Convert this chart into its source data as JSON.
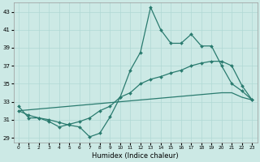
{
  "xlabel": "Humidex (Indice chaleur)",
  "x": [
    0,
    1,
    2,
    3,
    4,
    5,
    6,
    7,
    8,
    9,
    10,
    11,
    12,
    13,
    14,
    15,
    16,
    17,
    18,
    19,
    20,
    21,
    22,
    23
  ],
  "line1": [
    32.5,
    31.2,
    31.2,
    31.0,
    30.7,
    30.4,
    30.2,
    29.1,
    29.5,
    31.3,
    33.5,
    36.5,
    38.5,
    43.5,
    41.0,
    39.5,
    39.5,
    40.5,
    39.2,
    39.2,
    37.0,
    35.0,
    34.2,
    33.2
  ],
  "line2": [
    32.0,
    31.5,
    31.2,
    30.8,
    30.2,
    30.5,
    30.8,
    31.2,
    32.0,
    32.5,
    33.5,
    34.0,
    35.0,
    35.5,
    35.8,
    36.2,
    36.5,
    37.0,
    37.3,
    37.5,
    37.5,
    37.0,
    34.8,
    33.2
  ],
  "line3": [
    32.0,
    32.1,
    32.2,
    32.3,
    32.4,
    32.5,
    32.6,
    32.7,
    32.8,
    32.9,
    33.0,
    33.1,
    33.2,
    33.3,
    33.4,
    33.5,
    33.6,
    33.7,
    33.8,
    33.9,
    34.0,
    34.0,
    33.5,
    33.2
  ],
  "color": "#2a7b6f",
  "bg_color": "#cce9e5",
  "grid_color": "#b0d8d4",
  "ylim": [
    28.5,
    44
  ],
  "yticks": [
    29,
    31,
    33,
    35,
    37,
    39,
    41,
    43
  ],
  "xticks": [
    0,
    1,
    2,
    3,
    4,
    5,
    6,
    7,
    8,
    9,
    10,
    11,
    12,
    13,
    14,
    15,
    16,
    17,
    18,
    19,
    20,
    21,
    22,
    23
  ]
}
